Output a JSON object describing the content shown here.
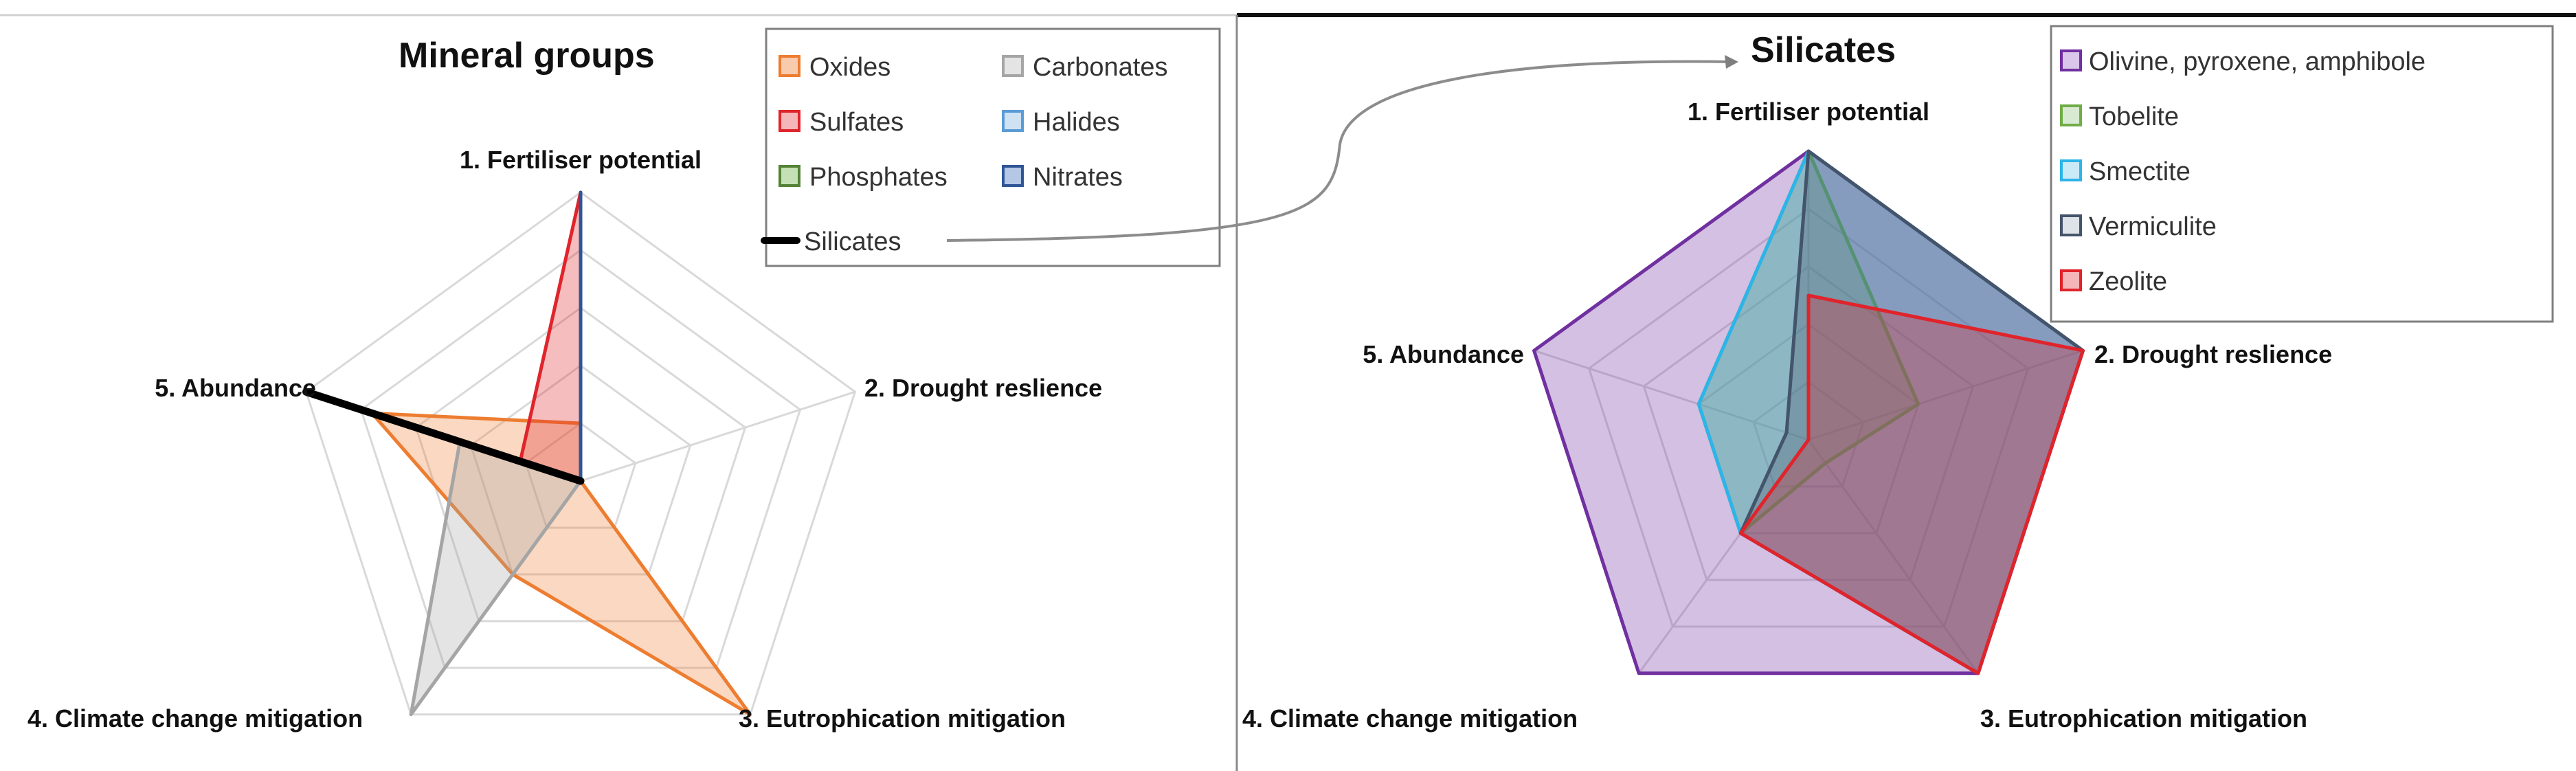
{
  "chart_data": [
    {
      "type": "radar",
      "title": "Mineral groups",
      "axes": [
        "1. Fertiliser potential",
        "2. Drought reslience",
        "3. Eutrophication mitigation",
        "4. Climate change mitigation",
        "5. Abundance"
      ],
      "range": [
        0,
        5
      ],
      "rings": 5,
      "series": [
        {
          "name": "Oxides",
          "color": "#ED7D31",
          "values": [
            1,
            0,
            5,
            2,
            3.8
          ]
        },
        {
          "name": "Carbonates",
          "color": "#A5A5A5",
          "values": [
            0,
            0,
            0,
            5,
            2.2
          ]
        },
        {
          "name": "Sulfates",
          "color": "#E0242B",
          "values": [
            5,
            0,
            0,
            0,
            1.1
          ]
        },
        {
          "name": "Halides",
          "color": "#5B9BD5",
          "values": [
            5,
            0,
            0,
            0,
            0
          ]
        },
        {
          "name": "Phosphates",
          "color": "#548235",
          "values": [
            5,
            0,
            0,
            0,
            0
          ]
        },
        {
          "name": "Nitrates",
          "color": "#2F5597",
          "values": [
            5,
            0,
            0,
            0,
            0
          ]
        },
        {
          "name": "Silicates",
          "color": "#000000",
          "values": [
            0,
            0,
            0,
            0,
            5
          ],
          "line_only": true
        }
      ],
      "legend_position": "top-right"
    },
    {
      "type": "radar",
      "title": "Silicates",
      "axes": [
        "1. Fertiliser potential",
        "2. Drought reslience",
        "3. Eutrophication mitigation",
        "4. Climate change mitigation",
        "5. Abundance"
      ],
      "range": [
        0,
        5
      ],
      "rings": 5,
      "series": [
        {
          "name": "Olivine, pyroxene, amphibole",
          "color": "#7030A0",
          "values": [
            5,
            5,
            5,
            5,
            5
          ]
        },
        {
          "name": "Tobelite",
          "color": "#70AD47",
          "values": [
            5,
            2,
            0.5,
            2,
            2
          ]
        },
        {
          "name": "Smectite",
          "color": "#2DB4E8",
          "values": [
            5,
            5,
            5,
            2,
            2
          ]
        },
        {
          "name": "Vermiculite",
          "color": "#44546A",
          "values": [
            5,
            5,
            5,
            2,
            0.4
          ]
        },
        {
          "name": "Zeolite",
          "color": "#E0242B",
          "values": [
            2.5,
            5,
            5,
            2,
            0
          ]
        }
      ],
      "legend_position": "top-right"
    }
  ],
  "annotation": {
    "from": "Silicates",
    "to": "Silicates"
  }
}
